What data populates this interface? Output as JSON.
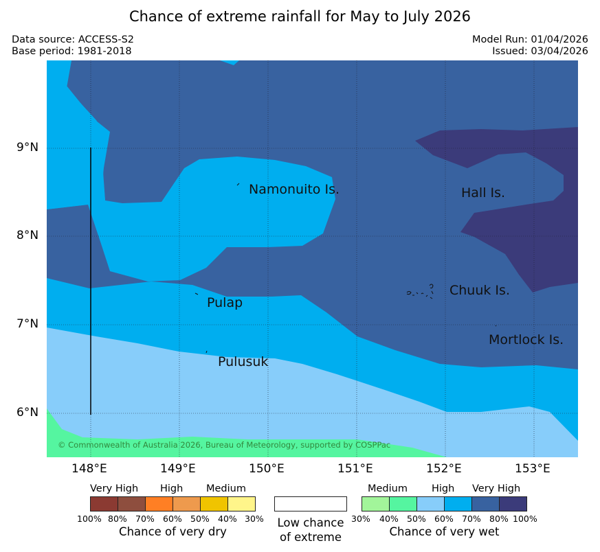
{
  "title": "Chance of extreme rainfall for May to July 2026",
  "meta": {
    "data_source": "Data source: ACCESS-S2",
    "base_period": "Base period: 1981-2018",
    "model_run": "Model Run: 01/04/2026",
    "issued": "Issued: 03/04/2026"
  },
  "map": {
    "lat_labels": [
      "9°N",
      "8°N",
      "7°N",
      "6°N"
    ],
    "lon_labels": [
      "148°E",
      "149°E",
      "150°E",
      "151°E",
      "152°E",
      "153°E"
    ],
    "places": [
      "Namonuito Is.",
      "Hall Is.",
      "Chuuk Is.",
      "Pulap",
      "Mortlock Is.",
      "Pulusuk"
    ],
    "copyright": "© Commonwealth of Australia 2026, Bureau of Meteorology, supported by COSPPac",
    "colors": {
      "very_high_wet": "#3b3b7a",
      "high_wet": "#3862a0",
      "high_60_70": "#00aeef",
      "medium_50_60": "#87cdfa",
      "medium_40_50": "#55f5a0"
    }
  },
  "legend": {
    "dry": {
      "heads": [
        "Very High",
        "High",
        "Medium"
      ],
      "pcts": [
        "100%",
        "80%",
        "70%",
        "60%",
        "50%",
        "40%",
        "30%"
      ],
      "caption": "Chance of very dry",
      "colors": [
        "#8b3a32",
        "#8e4e3e",
        "#ff7f24",
        "#ee9a4d",
        "#f0c400",
        "#fff58a"
      ]
    },
    "neutral": {
      "caption_line1": "Low chance",
      "caption_line2": "of extreme"
    },
    "wet": {
      "heads": [
        "Medium",
        "High",
        "Very High"
      ],
      "pcts": [
        "30%",
        "40%",
        "50%",
        "60%",
        "70%",
        "80%",
        "100%"
      ],
      "caption": "Chance of very wet",
      "colors": [
        "#a2f59a",
        "#55f5a0",
        "#87cdfa",
        "#00aeef",
        "#3862a0",
        "#3b3b7a"
      ]
    }
  }
}
